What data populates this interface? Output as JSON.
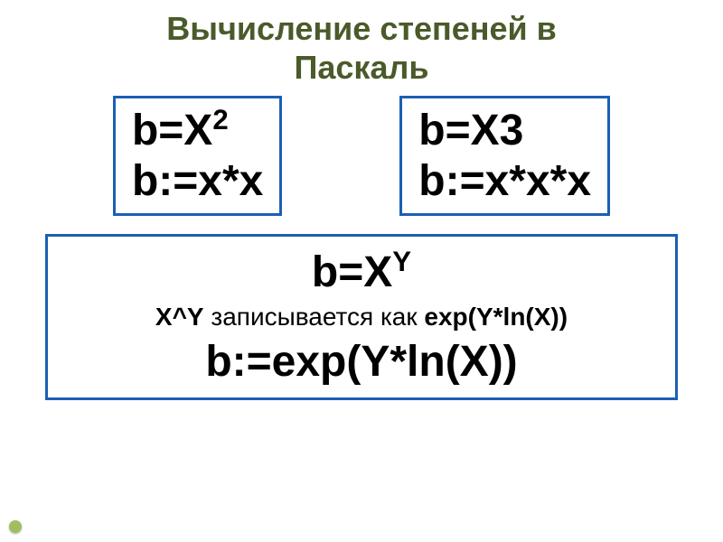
{
  "title": {
    "line1": "Вычисление степеней в",
    "line2": "Паскаль",
    "color": "#4a5a2a",
    "fontsize": 36
  },
  "box1": {
    "border_color": "#1a5fb4",
    "line1_prefix": "b=X",
    "line1_sup": "2",
    "line2": "b:=x*x"
  },
  "box2": {
    "border_color": "#1a5fb4",
    "line1": "b=X3",
    "line2": "b:=x*x*x"
  },
  "box3": {
    "border_color": "#1a5fb4",
    "line1_prefix": "b=X",
    "line1_sup": "Y",
    "desc_prefix": "X^Y",
    "desc_mid": " записывается как ",
    "desc_suffix": "exp(Y*ln(X))",
    "line3": "b:=exp(Y*ln(X))"
  },
  "bullet_color": "#9fbf5f"
}
